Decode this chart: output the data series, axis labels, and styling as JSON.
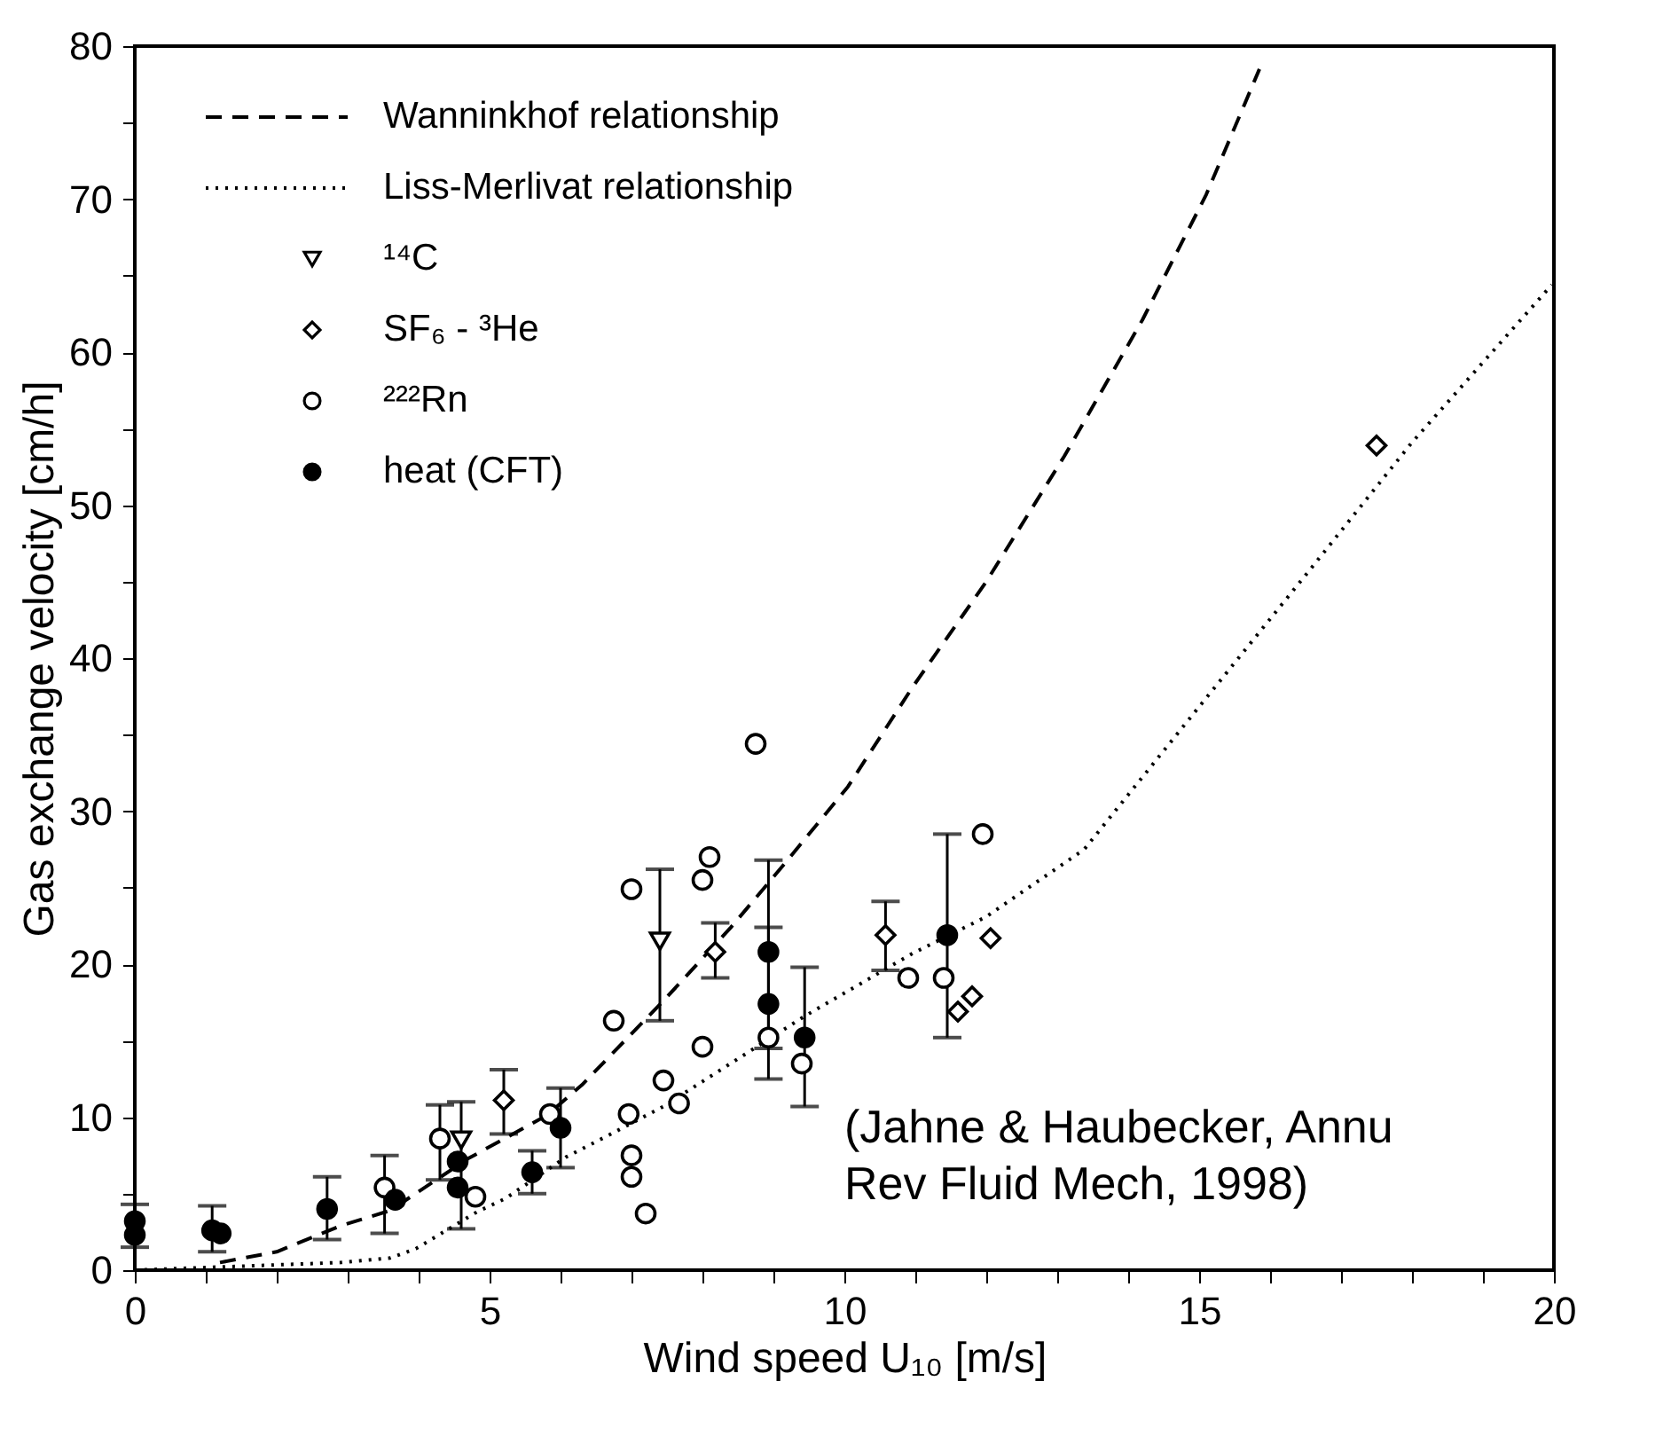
{
  "chart_data": {
    "type": "scatter",
    "xlabel": "Wind speed U₁₀ [m/s]",
    "ylabel": "Gas exchange velocity [cm/h]",
    "xlim": [
      0,
      20
    ],
    "ylim": [
      0,
      80
    ],
    "xticks": [
      0,
      {
        "value": 1,
        "label": null
      },
      {
        "value": 2,
        "label": null
      },
      {
        "value": 3,
        "label": null
      },
      {
        "value": 4,
        "label": null
      },
      5,
      {
        "value": 6,
        "label": null
      },
      {
        "value": 7,
        "label": null
      },
      {
        "value": 8,
        "label": null
      },
      {
        "value": 9,
        "label": null
      },
      10,
      {
        "value": 11,
        "label": null
      },
      {
        "value": 12,
        "label": null
      },
      {
        "value": 13,
        "label": null
      },
      {
        "value": 14,
        "label": null
      },
      15,
      {
        "value": 16,
        "label": null
      },
      {
        "value": 17,
        "label": null
      },
      {
        "value": 18,
        "label": null
      },
      {
        "value": 19,
        "label": null
      },
      20
    ],
    "yticks": [
      0,
      {
        "value": 5,
        "label": null
      },
      10,
      {
        "value": 15,
        "label": null
      },
      20,
      {
        "value": 25,
        "label": null
      },
      30,
      {
        "value": 35,
        "label": null
      },
      40,
      {
        "value": 45,
        "label": null
      },
      50,
      {
        "value": 55,
        "label": null
      },
      60,
      {
        "value": 65,
        "label": null
      },
      70,
      {
        "value": 75,
        "label": null
      },
      80
    ],
    "grid": false,
    "legend": "top left",
    "series": [
      {
        "name": "Wanninkhof relationship",
        "type": "line",
        "line_style": "dashed",
        "color": "#000000",
        "x": [
          1.2,
          2.0,
          2.9,
          3.6,
          4.7,
          5.8,
          6.3,
          7.45,
          8.4,
          9.2,
          10.05,
          10.96,
          12.0,
          13.1,
          14.2,
          15.1,
          15.85
        ],
        "values": [
          0.5,
          1.2,
          2.9,
          3.9,
          7.3,
          10.1,
          12.1,
          17.6,
          22.4,
          26.8,
          31.6,
          38.1,
          45.0,
          53.2,
          62.1,
          70.3,
          78.5
        ]
      },
      {
        "name": "Liss-Merlivat relationship",
        "type": "line",
        "line_style": "dotted",
        "color": "#000000",
        "x": [
          0,
          2.9,
          3.6,
          3.96,
          4.82,
          5.23,
          6.08,
          6.67,
          7.45,
          9.44,
          10.96,
          12.0,
          13.38,
          15.1,
          16.6,
          18.0,
          19.97
        ],
        "values": [
          0,
          0.5,
          0.8,
          1.4,
          3.8,
          4.7,
          7.4,
          8.8,
          10.7,
          16.6,
          20.7,
          23.1,
          27.5,
          37.4,
          46.0,
          54.1,
          64.4
        ]
      },
      {
        "name": "¹⁴C",
        "marker": "triangle",
        "color": "#ffffff",
        "x": [
          4.6,
          7.4
        ],
        "values": [
          8.5,
          21.5
        ],
        "errors": [
          [
            2.7,
            11.0
          ],
          [
            16.3,
            26.2
          ]
        ]
      },
      {
        "name": "SF₆ - ³He",
        "marker": "diamond",
        "color": "#ffffff",
        "x": [
          5.2,
          8.18,
          10.58,
          12.06,
          11.8,
          11.6,
          17.5
        ],
        "values": [
          11.1,
          20.8,
          21.9,
          21.7,
          17.9,
          16.9,
          53.9
        ],
        "errors": [
          [
            8.9,
            13.1
          ],
          [
            19.1,
            22.7
          ],
          [
            19.6,
            24.1
          ],
          null,
          null,
          null,
          null
        ]
      },
      {
        "name": "²²²Rn",
        "marker": "circle",
        "color": "#ffffff",
        "x": [
          3.52,
          4.3,
          4.8,
          5.85,
          6.75,
          7.0,
          8.0,
          8.1,
          8.75,
          8.0,
          7.45,
          7.67,
          6.96,
          7.0,
          7.0,
          7.2,
          8.93,
          9.4,
          10.9,
          11.4,
          11.95
        ],
        "values": [
          5.4,
          8.6,
          4.8,
          10.2,
          16.3,
          24.9,
          25.5,
          27.0,
          34.4,
          14.6,
          12.4,
          10.9,
          10.2,
          7.5,
          6.1,
          3.7,
          15.2,
          13.5,
          19.1,
          19.1,
          28.5
        ],
        "errors": [
          [
            2.4,
            7.5
          ],
          [
            5.9,
            10.8
          ],
          null,
          null,
          null,
          null,
          null,
          null,
          null,
          null,
          null,
          null,
          null,
          null,
          null,
          null,
          null,
          null,
          null,
          null,
          null
        ]
      },
      {
        "name": "heat (CFT)",
        "marker": "circle",
        "color": "#000000",
        "x": [
          0,
          0,
          1.09,
          1.21,
          2.71,
          3.67,
          4.55,
          4.55,
          5.6,
          6.0,
          8.93,
          8.93,
          9.44,
          11.45
        ],
        "values": [
          3.2,
          2.3,
          2.6,
          2.4,
          4.0,
          4.6,
          7.1,
          5.4,
          6.4,
          9.3,
          20.8,
          17.4,
          15.2,
          21.9
        ],
        "errors": [
          [
            1.5,
            4.3
          ],
          null,
          [
            1.2,
            4.2
          ],
          null,
          [
            2.0,
            6.1
          ],
          null,
          null,
          null,
          [
            5.0,
            7.8
          ],
          [
            6.7,
            11.9
          ],
          [
            12.5,
            26.8
          ],
          [
            14.5,
            22.4
          ],
          [
            10.7,
            19.8
          ],
          [
            15.2,
            28.5
          ]
        ]
      }
    ],
    "annotations": [
      "(Jahne & Haubecker, Annu Rev Fluid Mech, 1998)"
    ]
  }
}
